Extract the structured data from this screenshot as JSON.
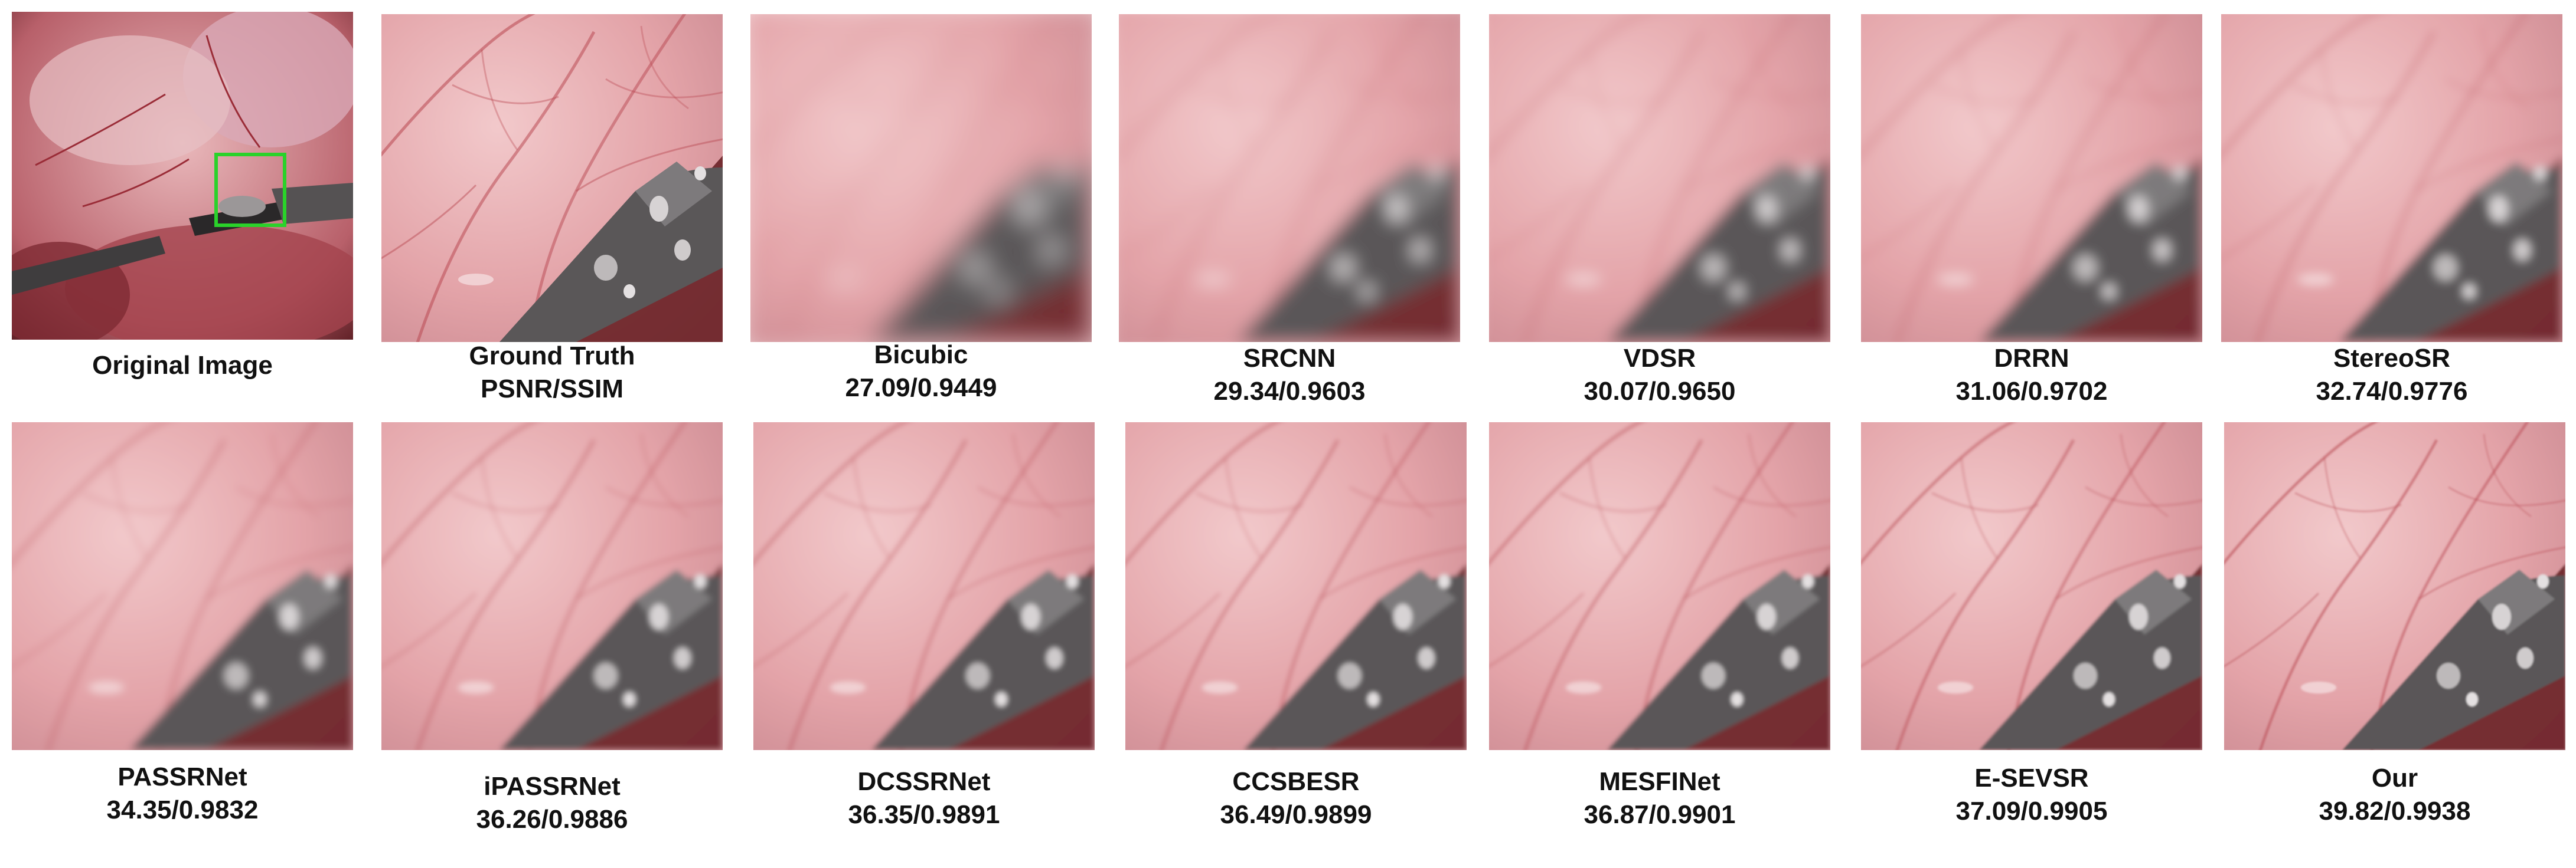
{
  "panels": [
    {
      "key": "original",
      "title": "Original Image",
      "metric": "",
      "blur": 0,
      "kind": "overview"
    },
    {
      "key": "gt",
      "title": "Ground Truth",
      "metric": "PSNR/SSIM",
      "blur": 0,
      "kind": "crop"
    },
    {
      "key": "bicubic",
      "title": "Bicubic",
      "metric": "27.09/0.9449",
      "blur": 22,
      "kind": "crop"
    },
    {
      "key": "srcnn",
      "title": "SRCNN",
      "metric": "29.34/0.9603",
      "blur": 15,
      "kind": "crop"
    },
    {
      "key": "vdsr",
      "title": "VDSR",
      "metric": "30.07/0.9650",
      "blur": 12,
      "kind": "crop"
    },
    {
      "key": "drrn",
      "title": "DRRN",
      "metric": "31.06/0.9702",
      "blur": 10,
      "kind": "crop"
    },
    {
      "key": "stereosr",
      "title": "StereoSR",
      "metric": "32.74/0.9776",
      "blur": 8,
      "kind": "crop"
    },
    {
      "key": "passrnet",
      "title": "PASSRNet",
      "metric": "34.35/0.9832",
      "blur": 7,
      "kind": "crop"
    },
    {
      "key": "ipassrnet",
      "title": "iPASSRNet",
      "metric": "36.26/0.9886",
      "blur": 5,
      "kind": "crop"
    },
    {
      "key": "dcssrnet",
      "title": "DCSSRNet",
      "metric": "36.35/0.9891",
      "blur": 4.5,
      "kind": "crop"
    },
    {
      "key": "ccsbesr",
      "title": "CCSBESR",
      "metric": "36.49/0.9899",
      "blur": 4,
      "kind": "crop"
    },
    {
      "key": "mesfinet",
      "title": "MESFINet",
      "metric": "36.87/0.9901",
      "blur": 3.5,
      "kind": "crop"
    },
    {
      "key": "esevsr",
      "title": "E-SEVSR",
      "metric": "37.09/0.9905",
      "blur": 2.5,
      "kind": "crop"
    },
    {
      "key": "our",
      "title": "Our",
      "metric": "39.82/0.9938",
      "blur": 1.5,
      "kind": "crop"
    }
  ],
  "colors": {
    "tissue": "#e3a3a8",
    "vessel": "#b8454f",
    "instrument": "#5a5758",
    "highlight": "#2ad22a",
    "background": "#ffffff"
  }
}
